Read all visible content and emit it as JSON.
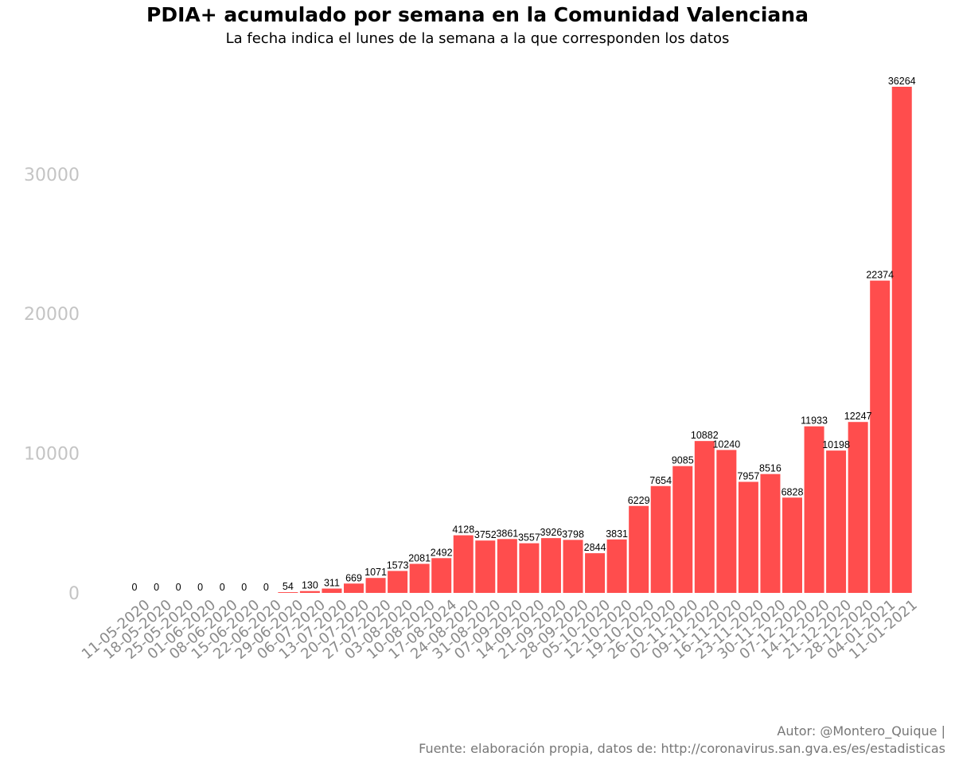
{
  "chart_data": {
    "type": "bar",
    "title": "PDIA+ acumulado por semana en la Comunidad Valenciana",
    "subtitle": "La fecha indica el lunes de la semana a la que corresponden los datos",
    "xlabel": "",
    "ylabel": "",
    "ylim": [
      0,
      36264
    ],
    "yticks": [
      0,
      10000,
      20000,
      30000
    ],
    "grid": false,
    "bar_color": "#ff4d4d",
    "categories": [
      "11-05-2020",
      "18-05-2020",
      "25-05-2020",
      "01-06-2020",
      "08-06-2020",
      "15-06-2020",
      "22-06-2020",
      "29-06-2020",
      "06-07-2020",
      "13-07-2020",
      "20-07-2020",
      "27-07-2020",
      "03-08-2020",
      "10-08-2020",
      "17-08-2024",
      "24-08-2020",
      "31-08-2020",
      "07-09-2020",
      "14-09-2020",
      "21-09-2020",
      "28-09-2020",
      "05-10-2020",
      "12-10-2020",
      "19-10-2020",
      "26-10-2020",
      "02-11-2020",
      "09-11-2020",
      "16-11-2020",
      "23-11-2020",
      "30-11-2020",
      "07-12-2020",
      "14-12-2020",
      "21-12-2020",
      "28-12-2020",
      "04-01-2021",
      "11-01-2021"
    ],
    "values": [
      0,
      0,
      0,
      0,
      0,
      0,
      0,
      54,
      130,
      311,
      669,
      1071,
      1573,
      2081,
      2492,
      4128,
      3752,
      3861,
      3557,
      3926,
      3798,
      2844,
      3831,
      6229,
      7654,
      9085,
      10882,
      10240,
      7957,
      8516,
      6828,
      11933,
      10198,
      12247,
      22374,
      36264
    ]
  },
  "caption": {
    "line1": "Autor: @Montero_Quique |",
    "line2": "Fuente: elaboración propia, datos de: http://coronavirus.san.gva.es/es/estadisticas"
  }
}
